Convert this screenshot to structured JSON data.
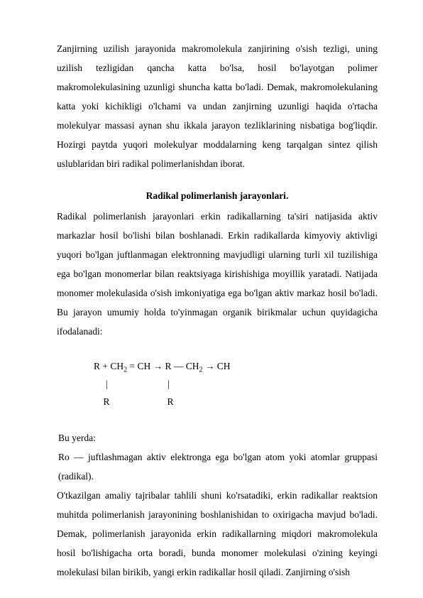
{
  "para1": "Zanjirning uzilish jarayonida makromolekula zanjirining o'sish tezligi, uning uzilish tezligidan qancha katta bo'lsa, hosil bo'layotgan polimer makromolekulasining uzunligi shuncha katta bo'ladi. Demak, makromolekulaning katta yoki kichikligi o'lchami va undan zanjirning uzunligi haqida o'rtacha molekulyar massasi aynan shu ikkala jarayon tezliklarining nisbatiga bog'liqdir. Hozirgi paytda yuqori molekulyar moddalarning keng tarqalgan sintez qilish uslublaridan biri radikal polimerlanishdan iborat.",
  "heading": "Radikal polimerlanish jarayonlari.",
  "para2": "Radikal polimerlanish jarayonlari erkin radikallarning ta'siri natijasida aktiv markazlar hosil bo'lishi bilan boshlanadi. Erkin radikallarda kimyoviy aktivligi yuqori bo'lgan juftlanmagan elektronning mavjudligi ularning turli xil tuzilishiga ega bo'lgan monomerlar bilan reaktsiyaga kirishishiga moyillik yaratadi. Natijada monomer molekulasida o'sish imkoniyatiga ega bo'lgan aktiv markaz hosil bo'ladi. Bu jarayon umumiy holda to'yinmagan organik birikmalar uchun quyidagicha ifodalanadi:",
  "equation": {
    "line1_pre": "R + CH",
    "line1_mid1": " = CH → R — CH",
    "line1_mid2": " → CH",
    "line2": "     |                         |",
    "line3": "    R                        R"
  },
  "para3_label": " Bu yerda:",
  "para3_body": " Ro — juftlashmagan aktiv elektronga ega bo'lgan atom yoki atomlar gruppasi (radikal).",
  "para4": "O'tkazilgan amaliy tajribalar tahlili shuni ko'rsatadiki, erkin radikallar reaktsion muhitda polimerlanish jarayonining boshlanishidan to oxirigacha mavjud bo'ladi. Demak, polimerlanish jarayonida erkin radikallarning miqdori makromolekula hosil bo'lishigacha orta boradi, bunda monomer molekulasi o'zining keyingi molekulasi bilan birikib, yangi erkin radikallar hosil qiladi. Zanjirning o'sish"
}
